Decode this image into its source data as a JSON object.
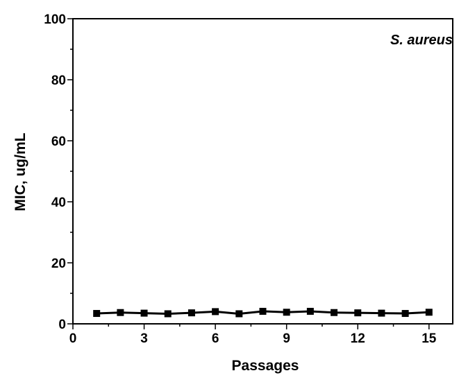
{
  "chart_data": {
    "type": "line",
    "title": "",
    "xlabel": "Passages",
    "ylabel": "MIC, ug/mL",
    "annotation": "S. aureus",
    "xlim": [
      0,
      16
    ],
    "ylim": [
      0,
      100
    ],
    "x_ticks": [
      0,
      3,
      6,
      9,
      12,
      15
    ],
    "y_ticks": [
      0,
      20,
      40,
      60,
      80,
      100
    ],
    "grid": false,
    "legend": "none",
    "marker": "square",
    "color": "#000000",
    "series": [
      {
        "x": [
          1,
          2,
          3,
          4,
          5,
          6,
          7,
          8,
          9,
          10,
          11,
          12,
          13,
          14,
          15
        ],
        "y": [
          3.4,
          3.7,
          3.5,
          3.3,
          3.6,
          4.0,
          3.3,
          4.1,
          3.8,
          4.1,
          3.7,
          3.6,
          3.5,
          3.4,
          3.8
        ]
      }
    ]
  }
}
